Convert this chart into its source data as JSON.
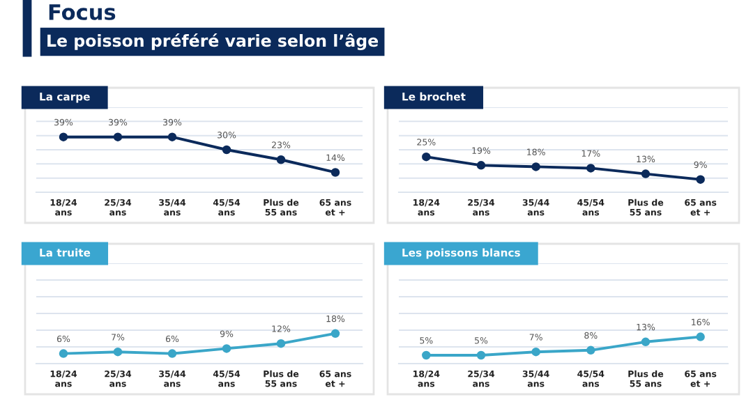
{
  "chart_data": [
    {
      "type": "other",
      "title": "Focus",
      "subtitle": "Le poisson préféré varie selon l’âge"
    },
    {
      "type": "line",
      "title": "La carpe",
      "categories": [
        "18/24\nans",
        "25/34\nans",
        "35/44\nans",
        "45/54\nans",
        "Plus de\n55 ans",
        "65 ans\net +"
      ],
      "series": [
        {
          "color": "#0b2a5b",
          "values": [
            39,
            39,
            39,
            30,
            23,
            14
          ],
          "value_labels": [
            "39%",
            "39%",
            "39%",
            "30%",
            "23%",
            "14%"
          ]
        }
      ],
      "ylim": [
        0,
        60
      ],
      "yticks": [
        {
          "value": 10,
          "label": null
        },
        {
          "value": 20,
          "label": null
        },
        {
          "value": 30,
          "label": null
        },
        {
          "value": 40,
          "label": null
        },
        {
          "value": 50,
          "label": null
        },
        {
          "value": 60,
          "label": null
        }
      ],
      "grid": "y",
      "tick_labels": "x",
      "marker": "circle",
      "line_style": "solid",
      "legend": false
    },
    {
      "type": "line",
      "title": "Le brochet",
      "categories": [
        "18/24\nans",
        "25/34\nans",
        "35/44\nans",
        "45/54\nans",
        "Plus de\n55 ans",
        "65 ans\net +"
      ],
      "series": [
        {
          "color": "#0b2a5b",
          "values": [
            25,
            19,
            18,
            17,
            13,
            9
          ],
          "value_labels": [
            "25%",
            "19%",
            "18%",
            "17%",
            "13%",
            "9%"
          ]
        }
      ],
      "ylim": [
        0,
        60
      ],
      "yticks": [
        {
          "value": 10,
          "label": null
        },
        {
          "value": 20,
          "label": null
        },
        {
          "value": 30,
          "label": null
        },
        {
          "value": 40,
          "label": null
        },
        {
          "value": 50,
          "label": null
        },
        {
          "value": 60,
          "label": null
        }
      ],
      "grid": "y",
      "tick_labels": "x",
      "marker": "circle",
      "line_style": "solid",
      "legend": false
    },
    {
      "type": "line",
      "title": "La truite",
      "categories": [
        "18/24\nans",
        "25/34\nans",
        "35/44\nans",
        "45/54\nans",
        "Plus de\n55 ans",
        "65 ans\net +"
      ],
      "series": [
        {
          "color": "#3aa6c8",
          "values": [
            6,
            7,
            6,
            9,
            12,
            18
          ],
          "value_labels": [
            "6%",
            "7%",
            "6%",
            "9%",
            "12%",
            "18%"
          ]
        }
      ],
      "ylim": [
        0,
        60
      ],
      "yticks": [
        {
          "value": 10,
          "label": null
        },
        {
          "value": 20,
          "label": null
        },
        {
          "value": 30,
          "label": null
        },
        {
          "value": 40,
          "label": null
        },
        {
          "value": 50,
          "label": null
        },
        {
          "value": 60,
          "label": null
        }
      ],
      "grid": "y",
      "tick_labels": "x",
      "marker": "circle",
      "line_style": "solid",
      "legend": false
    },
    {
      "type": "line",
      "title": "Les poissons blancs",
      "categories": [
        "18/24\nans",
        "25/34\nans",
        "35/44\nans",
        "45/54\nans",
        "Plus de\n55 ans",
        "65 ans\net +"
      ],
      "series": [
        {
          "color": "#3aa6c8",
          "values": [
            5,
            5,
            7,
            8,
            13,
            16
          ],
          "value_labels": [
            "5%",
            "5%",
            "7%",
            "8%",
            "13%",
            "16%"
          ]
        }
      ],
      "ylim": [
        0,
        60
      ],
      "yticks": [
        {
          "value": 10,
          "label": null
        },
        {
          "value": 20,
          "label": null
        },
        {
          "value": 30,
          "label": null
        },
        {
          "value": 40,
          "label": null
        },
        {
          "value": 50,
          "label": null
        },
        {
          "value": 60,
          "label": null
        }
      ],
      "grid": "y",
      "tick_labels": "x",
      "marker": "circle",
      "line_style": "solid",
      "legend": false
    }
  ]
}
